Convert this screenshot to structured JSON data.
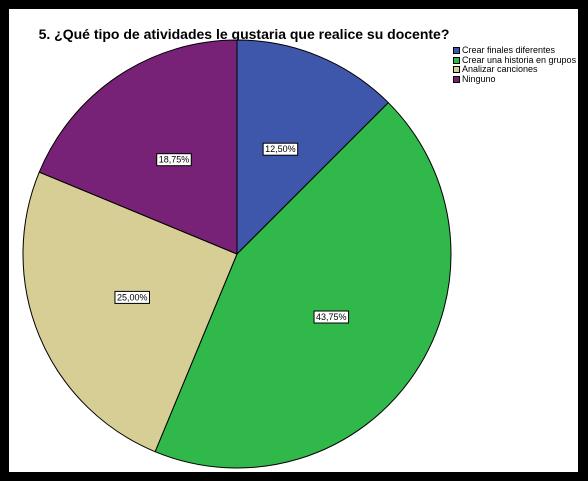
{
  "chart_data": {
    "type": "pie",
    "title": "5. ¿Qué tipo de atividades le gustaria que realice su docente?",
    "categories": [
      "Crear finales diferentes",
      "Crear una historia en grupos",
      "Analizar canciones",
      "Ninguno"
    ],
    "values": [
      12.5,
      43.75,
      25.0,
      18.75
    ],
    "data_labels": [
      "12,50%",
      "43,75%",
      "25,00%",
      "18,75%"
    ],
    "colors": [
      "#3f57ab",
      "#30b94a",
      "#d6ce95",
      "#782277"
    ],
    "legend_position": "top-right",
    "start_angle": "12 o'clock",
    "direction": "clockwise"
  }
}
